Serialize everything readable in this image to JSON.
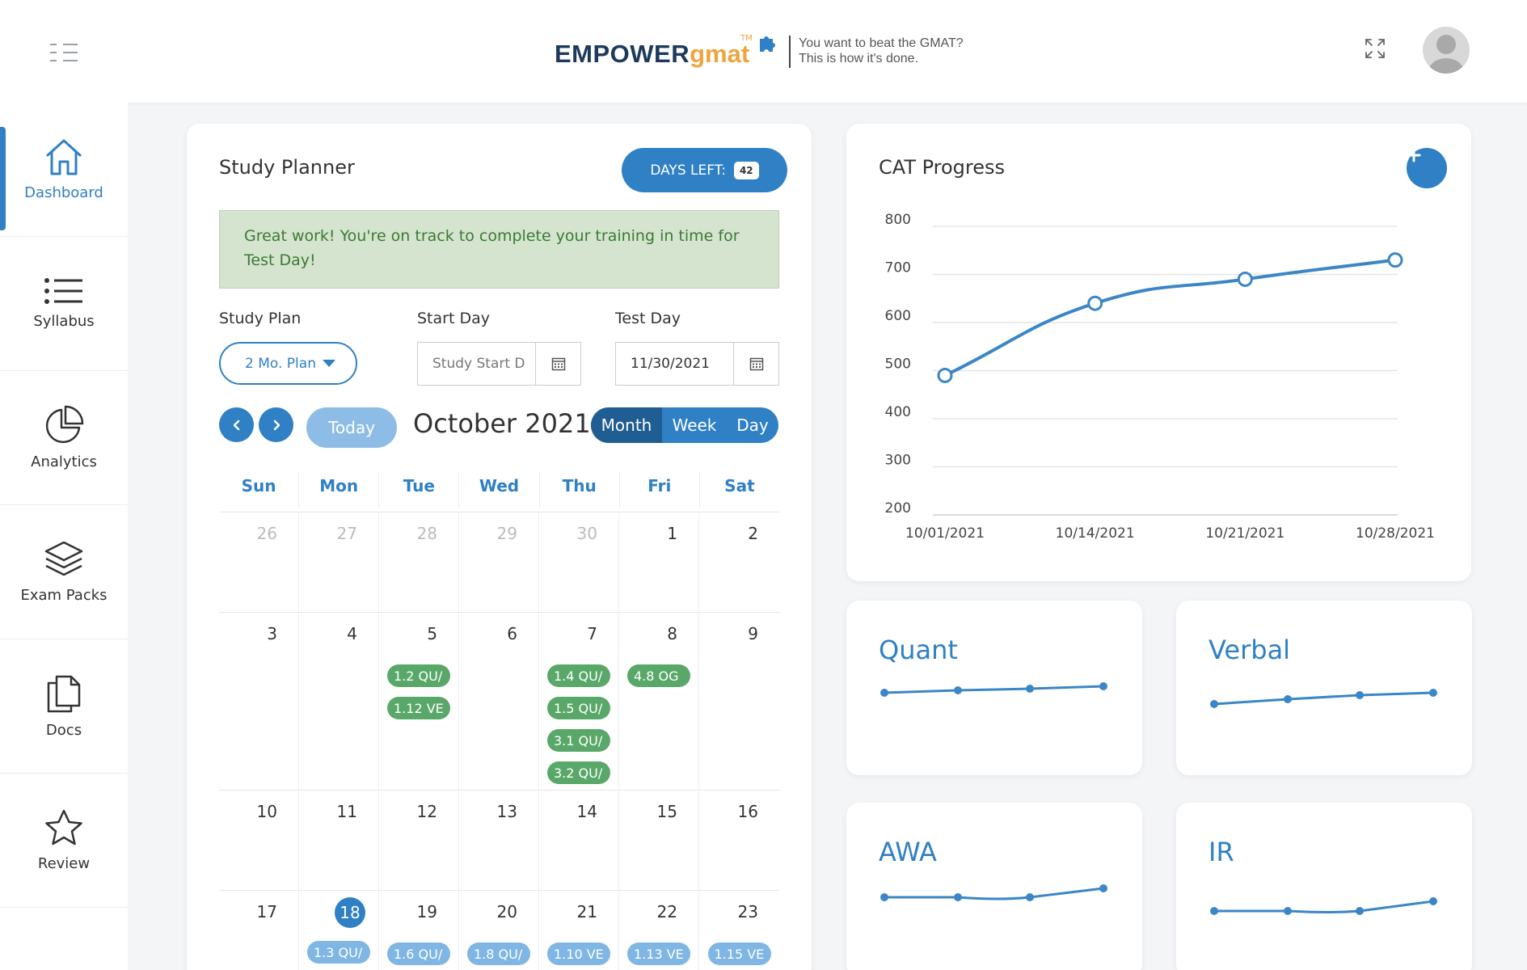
{
  "header": {
    "logo_main": "EMPOWER",
    "logo_accent": "gmat",
    "logo_tm": "TM",
    "tagline_1": "You want to beat the GMAT?",
    "tagline_2": "This is how it's done."
  },
  "sidebar": {
    "items": [
      {
        "label": "Dashboard",
        "icon": "home-icon",
        "active": true
      },
      {
        "label": "Syllabus",
        "icon": "list-icon"
      },
      {
        "label": "Analytics",
        "icon": "pie-chart-icon"
      },
      {
        "label": "Exam Packs",
        "icon": "layers-icon"
      },
      {
        "label": "Docs",
        "icon": "documents-icon"
      },
      {
        "label": "Review",
        "icon": "star-icon"
      }
    ]
  },
  "planner": {
    "title": "Study Planner",
    "days_left_label": "DAYS LEFT:",
    "days_left_value": "42",
    "banner": "Great work! You're on track to complete your training in time for Test Day!",
    "study_plan_label": "Study Plan",
    "study_plan_value": "2 Mo. Plan",
    "start_day_label": "Start Day",
    "start_day_placeholder": "Study Start D",
    "test_day_label": "Test Day",
    "test_day_value": "11/30/2021",
    "today_label": "Today",
    "month_title": "October 2021",
    "views": [
      "Month",
      "Week",
      "Day"
    ],
    "active_view": "Month",
    "weekdays": [
      "Sun",
      "Mon",
      "Tue",
      "Wed",
      "Thu",
      "Fri",
      "Sat"
    ],
    "weeks": [
      [
        {
          "d": "26",
          "other": true
        },
        {
          "d": "27",
          "other": true
        },
        {
          "d": "28",
          "other": true
        },
        {
          "d": "29",
          "other": true
        },
        {
          "d": "30",
          "other": true
        },
        {
          "d": "1"
        },
        {
          "d": "2"
        }
      ],
      [
        {
          "d": "3"
        },
        {
          "d": "4"
        },
        {
          "d": "5",
          "events": [
            "1.2 QU/",
            "1.12 VE"
          ]
        },
        {
          "d": "6"
        },
        {
          "d": "7",
          "events": [
            "1.4 QU/",
            "1.5 QU/",
            "3.1 QU/",
            "3.2 QU/"
          ]
        },
        {
          "d": "8",
          "events": [
            "4.8 OG"
          ]
        },
        {
          "d": "9"
        }
      ],
      [
        {
          "d": "10"
        },
        {
          "d": "11"
        },
        {
          "d": "12"
        },
        {
          "d": "13"
        },
        {
          "d": "14"
        },
        {
          "d": "15"
        },
        {
          "d": "16"
        }
      ],
      [
        {
          "d": "17"
        },
        {
          "d": "18",
          "today": true,
          "events": [
            "1.3 QU/"
          ]
        },
        {
          "d": "19",
          "events": [
            "1.6 QU/"
          ]
        },
        {
          "d": "20",
          "events": [
            "1.8 QU/"
          ]
        },
        {
          "d": "21",
          "events": [
            "1.10 VE"
          ]
        },
        {
          "d": "22",
          "events": [
            "1.13 VE"
          ]
        },
        {
          "d": "23",
          "events": [
            "1.15 VE"
          ]
        }
      ]
    ]
  },
  "cat_progress": {
    "title": "CAT Progress",
    "chart_data": {
      "type": "line",
      "x": [
        "10/01/2021",
        "10/14/2021",
        "10/21/2021",
        "10/28/2021"
      ],
      "series": [
        {
          "values": [
            490,
            640,
            690,
            730
          ]
        }
      ],
      "ylim": [
        200,
        800
      ],
      "yticks": [
        "800",
        "700",
        "600",
        "500",
        "400",
        "300",
        "200"
      ],
      "grid": true
    }
  },
  "sections": [
    {
      "title": "Quant"
    },
    {
      "title": "Verbal"
    },
    {
      "title": "AWA"
    },
    {
      "title": "IR"
    }
  ],
  "colors": {
    "accent": "#2f80c5",
    "event_done": "#5aa869",
    "event_upcoming": "#7fb6e3",
    "brand_orange": "#f0a43c"
  }
}
